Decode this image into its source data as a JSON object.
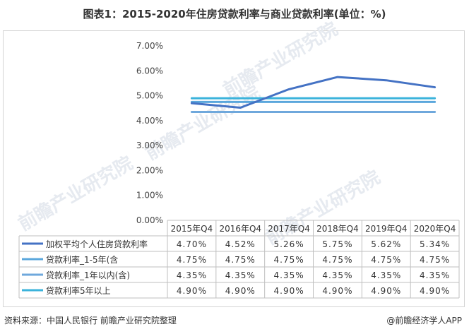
{
  "title": "图表1：2015-2020年住房贷款利率与商业贷款利率(单位：%)",
  "source": "资料来源：中国人民银行 前瞻产业研究院整理",
  "brand": "@前瞻经济学人APP",
  "watermark": "前瞻产业研究院",
  "chart_data": {
    "type": "line",
    "categories": [
      "2015年Q4",
      "2016年Q4",
      "2017年Q4",
      "2018年Q4",
      "2019年Q4",
      "2020年Q4"
    ],
    "ylim": [
      0,
      7
    ],
    "yticks": [
      0,
      1,
      2,
      3,
      4,
      5,
      6,
      7
    ],
    "ytick_labels": [
      "0.00%",
      "1.00%",
      "2.00%",
      "3.00%",
      "4.00%",
      "5.00%",
      "6.00%",
      "7.00%"
    ],
    "grid": false,
    "legend": "data-table",
    "series": [
      {
        "name": "加权平均个人住房贷款利率",
        "values": [
          4.7,
          4.52,
          5.26,
          5.75,
          5.62,
          5.34
        ],
        "labels": [
          "4.70%",
          "4.52%",
          "5.26%",
          "5.75%",
          "5.62%",
          "5.34%"
        ],
        "color": "#4472C4"
      },
      {
        "name": "贷款利率_1-5年(含",
        "values": [
          4.75,
          4.75,
          4.75,
          4.75,
          4.75,
          4.75
        ],
        "labels": [
          "4.75%",
          "4.75%",
          "4.75%",
          "4.75%",
          "4.75%",
          "4.75%"
        ],
        "color": "#5BA7DC"
      },
      {
        "name": "贷款利率_1年以内(含)",
        "values": [
          4.35,
          4.35,
          4.35,
          4.35,
          4.35,
          4.35
        ],
        "labels": [
          "4.35%",
          "4.35%",
          "4.35%",
          "4.35%",
          "4.35%",
          "4.35%"
        ],
        "color": "#6FA8DC"
      },
      {
        "name": "贷款利率5年以上",
        "values": [
          4.9,
          4.9,
          4.9,
          4.9,
          4.9,
          4.9
        ],
        "labels": [
          "4.90%",
          "4.90%",
          "4.90%",
          "4.90%",
          "4.90%",
          "4.90%"
        ],
        "color": "#3BB3DB"
      }
    ]
  }
}
